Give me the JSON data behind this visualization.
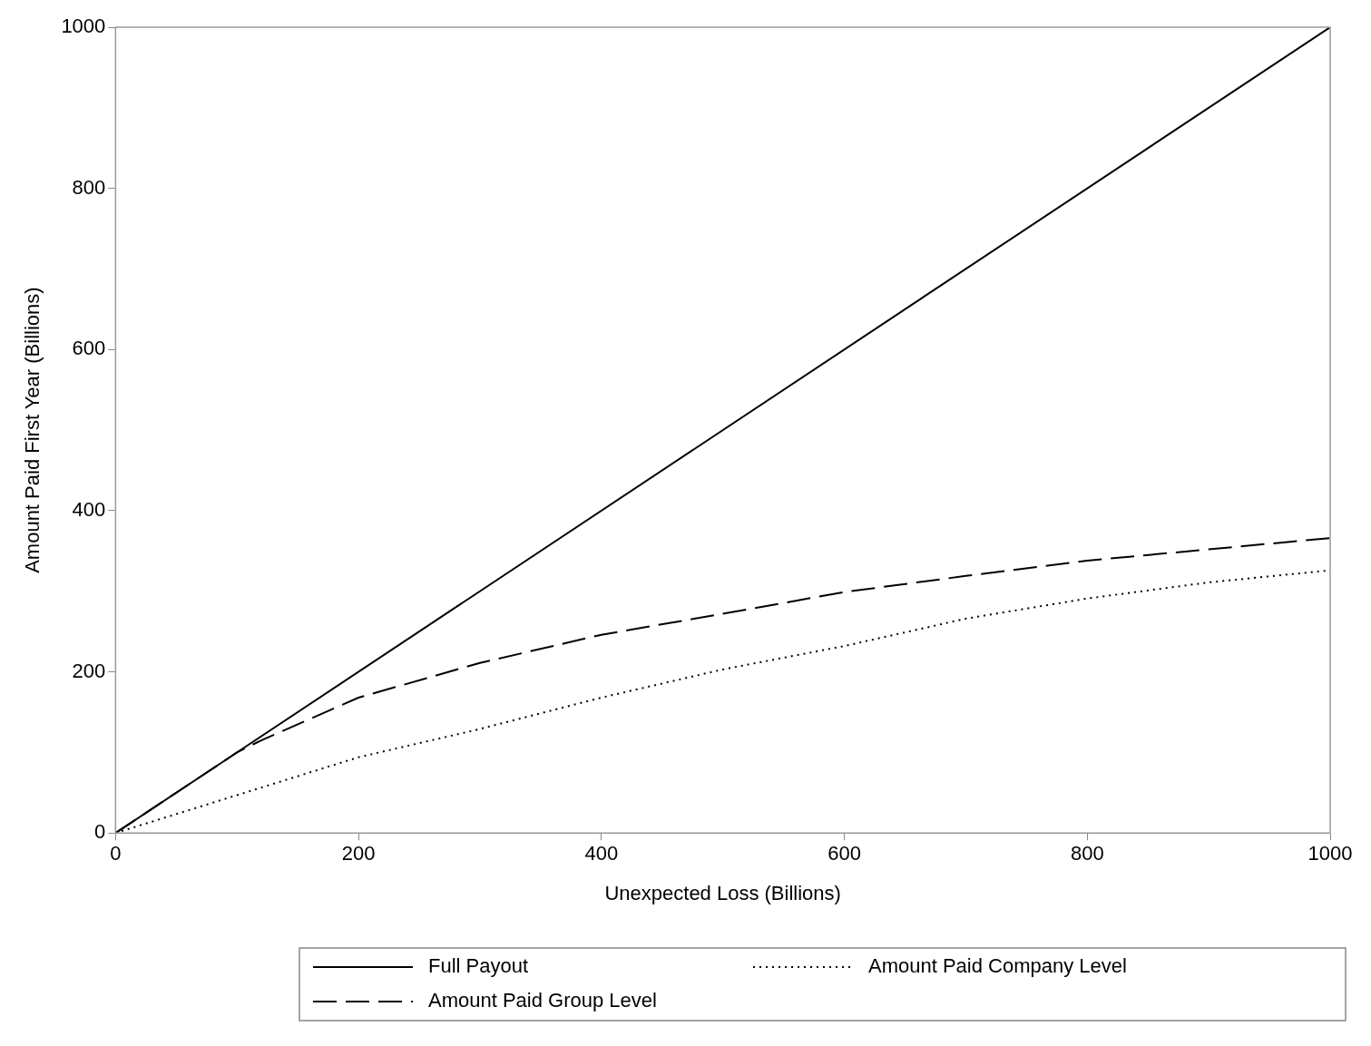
{
  "chart_data": {
    "type": "line",
    "xlabel": "Unexpected Loss (Billions)",
    "ylabel": "Amount Paid First Year (Billions)",
    "xlim": [
      0,
      1000
    ],
    "xticks": [
      0,
      200,
      400,
      600,
      800,
      1000
    ],
    "ylim": [
      0,
      1000
    ],
    "yticks": [
      0,
      200,
      400,
      600,
      800,
      1000
    ],
    "grid": false,
    "legend": "bottom",
    "marker": "none",
    "series": [
      {
        "name": "Full Payout",
        "color": "#000000",
        "line_style": "solid",
        "x": [
          0,
          1000
        ],
        "values": [
          0,
          1000
        ]
      },
      {
        "name": "Amount Paid Group Level",
        "color": "#000000",
        "line_style": "dashed",
        "x": [
          0,
          100,
          120,
          200,
          300,
          400,
          500,
          600,
          700,
          800,
          900,
          1000
        ],
        "values": [
          0,
          100,
          115,
          168,
          211,
          246,
          272,
          299,
          319,
          338,
          352,
          366
        ]
      },
      {
        "name": "Amount Paid Company Level",
        "color": "#000000",
        "line_style": "dotted",
        "x": [
          0,
          100,
          200,
          300,
          400,
          500,
          600,
          700,
          800,
          900,
          1000
        ],
        "values": [
          0,
          47,
          94,
          129,
          168,
          203,
          232,
          266,
          291,
          311,
          326
        ]
      }
    ]
  }
}
